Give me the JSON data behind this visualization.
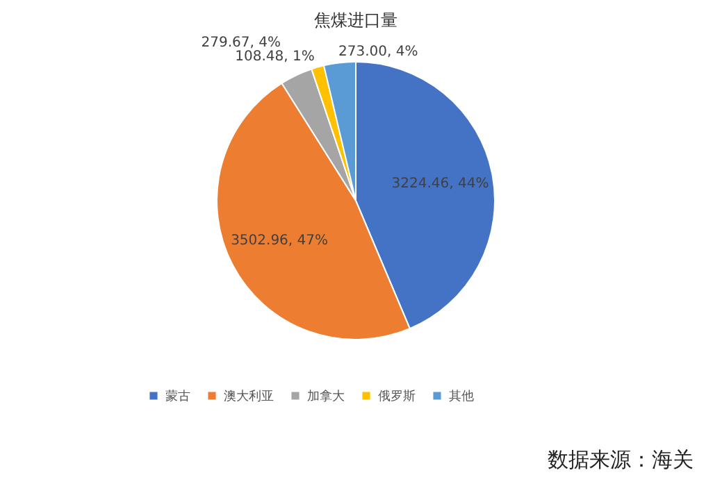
{
  "chart_data": {
    "type": "pie",
    "title": "焦煤进口量",
    "categories": [
      "蒙古",
      "澳大利亚",
      "加拿大",
      "俄罗斯",
      "其他"
    ],
    "values": [
      3224.46,
      3502.96,
      279.67,
      108.48,
      273.0
    ],
    "colors": [
      "#4472c4",
      "#ed7d31",
      "#a5a5a5",
      "#ffc000",
      "#5b9bd5"
    ],
    "value_labels": [
      "3224.46, 44%",
      "3502.96, 47%",
      "279.67, 4%",
      "108.48, 1%",
      "273.00, 4%"
    ],
    "legend": "bottom",
    "annotations": [
      "数据来源：海关"
    ]
  }
}
